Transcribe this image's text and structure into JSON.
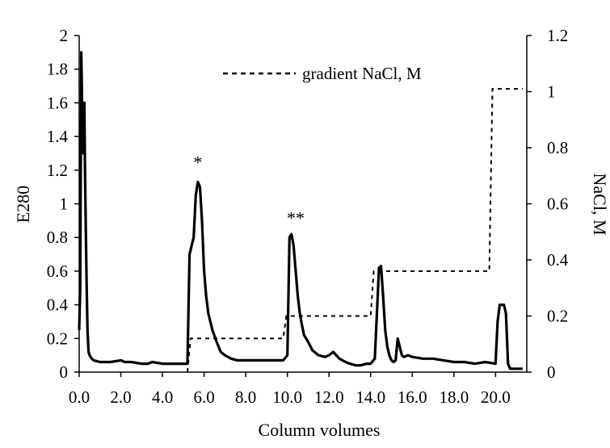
{
  "chart_data": {
    "type": "line",
    "xlabel": "Column volumes",
    "ylabel": "E280",
    "y2label": "NaCl, M",
    "xlim": [
      0,
      21.5
    ],
    "ylim": [
      0,
      2
    ],
    "y2lim": [
      0,
      1.2
    ],
    "grid": false,
    "legend_position": "top-center",
    "x_ticks": [
      "0.0",
      "2.0",
      "4.0",
      "6.0",
      "8.0",
      "10.0",
      "12.0",
      "14.0",
      "16.0",
      "18.0",
      "20.0"
    ],
    "y_ticks": [
      "0",
      "0.2",
      "0.4",
      "0.6",
      "0.8",
      "1",
      "1.2",
      "1.4",
      "1.6",
      "1.8",
      "2"
    ],
    "y2_ticks": [
      "0",
      "0.2",
      "0.4",
      "0.6",
      "0.8",
      "1",
      "1.2"
    ],
    "series": [
      {
        "axis": "left",
        "style": "solid",
        "x": [
          0.0,
          0.05,
          0.1,
          0.15,
          0.2,
          0.25,
          0.28,
          0.32,
          0.36,
          0.4,
          0.45,
          0.5,
          0.55,
          0.6,
          0.7,
          1.0,
          1.5,
          2.0,
          2.2,
          2.5,
          3.0,
          3.3,
          3.5,
          4.0,
          4.5,
          5.0,
          5.2,
          5.3,
          5.4,
          5.5,
          5.6,
          5.7,
          5.8,
          5.9,
          6.0,
          6.1,
          6.2,
          6.4,
          6.6,
          6.8,
          7.0,
          7.3,
          7.6,
          8.0,
          8.5,
          9.0,
          9.5,
          9.8,
          10.0,
          10.1,
          10.2,
          10.3,
          10.4,
          10.5,
          10.6,
          10.7,
          10.8,
          11.0,
          11.2,
          11.5,
          11.8,
          12.0,
          12.2,
          12.5,
          12.8,
          13.0,
          13.3,
          13.5,
          13.8,
          14.0,
          14.2,
          14.4,
          14.5,
          14.6,
          14.7,
          14.8,
          14.9,
          15.0,
          15.1,
          15.2,
          15.3,
          15.4,
          15.5,
          15.6,
          15.8,
          16.0,
          16.5,
          17.0,
          17.5,
          18.0,
          18.5,
          19.0,
          19.5,
          20.0,
          20.1,
          20.2,
          20.3,
          20.4,
          20.5,
          20.6,
          20.7,
          20.8,
          20.9,
          21.0,
          21.3
        ],
        "values": [
          0.25,
          0.5,
          1.9,
          1.5,
          1.3,
          1.6,
          1.2,
          0.85,
          0.5,
          0.25,
          0.12,
          0.1,
          0.09,
          0.08,
          0.07,
          0.06,
          0.06,
          0.07,
          0.06,
          0.06,
          0.05,
          0.05,
          0.06,
          0.05,
          0.05,
          0.05,
          0.05,
          0.7,
          0.75,
          0.8,
          1.05,
          1.13,
          1.1,
          0.9,
          0.6,
          0.45,
          0.35,
          0.25,
          0.18,
          0.12,
          0.1,
          0.08,
          0.07,
          0.07,
          0.07,
          0.07,
          0.07,
          0.07,
          0.1,
          0.8,
          0.82,
          0.75,
          0.6,
          0.45,
          0.35,
          0.28,
          0.22,
          0.18,
          0.13,
          0.1,
          0.09,
          0.1,
          0.12,
          0.08,
          0.06,
          0.05,
          0.04,
          0.04,
          0.05,
          0.05,
          0.08,
          0.62,
          0.63,
          0.45,
          0.25,
          0.15,
          0.1,
          0.07,
          0.06,
          0.07,
          0.2,
          0.15,
          0.1,
          0.09,
          0.1,
          0.09,
          0.08,
          0.08,
          0.07,
          0.06,
          0.06,
          0.05,
          0.06,
          0.05,
          0.3,
          0.4,
          0.4,
          0.4,
          0.35,
          0.05,
          0.02,
          0.02,
          0.02,
          0.02,
          0.02
        ]
      },
      {
        "name": "gradient NaCl, M",
        "axis": "right",
        "style": "dotted",
        "x": [
          5.2,
          5.35,
          9.8,
          9.95,
          14.0,
          14.15,
          19.7,
          19.85,
          21.3
        ],
        "values": [
          0.0,
          0.12,
          0.12,
          0.2,
          0.2,
          0.36,
          0.36,
          1.01,
          1.01
        ]
      }
    ],
    "annotations": [
      {
        "text": "*",
        "x": 5.7,
        "y": 1.21
      },
      {
        "text": "**",
        "x": 10.4,
        "y": 0.88
      }
    ]
  }
}
